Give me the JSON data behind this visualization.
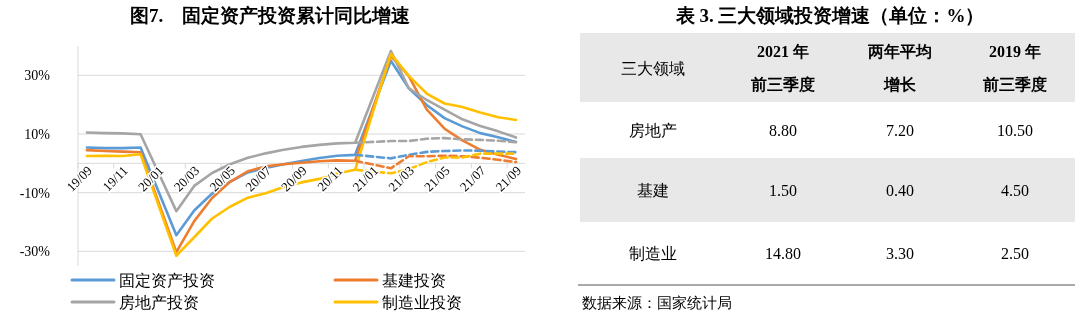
{
  "chart_data": [
    {
      "type": "line",
      "title": "图7.　固定资产投资累计同比增速",
      "categories": [
        "19/09",
        null,
        "19/11",
        null,
        "20/01",
        null,
        "20/03",
        null,
        "20/05",
        null,
        "20/07",
        null,
        "20/09",
        null,
        "20/11",
        null,
        "21/01",
        null,
        "21/03",
        null,
        "21/05",
        null,
        "21/07",
        null,
        "21/09"
      ],
      "series": [
        {
          "name": "固定资产投资",
          "color": "#5b9bd5",
          "values": [
            5.4,
            5.2,
            5.2,
            5.4,
            null,
            -24.5,
            -16.1,
            -10.3,
            -6.3,
            -3.1,
            -1.6,
            -0.3,
            0.8,
            1.8,
            2.6,
            2.9,
            null,
            35.0,
            25.6,
            19.9,
            15.4,
            12.6,
            10.3,
            8.9,
            7.3
          ]
        },
        {
          "name": "基建投资",
          "color": "#ed7d31",
          "values": [
            4.5,
            4.2,
            4.0,
            3.8,
            null,
            -30.3,
            -19.7,
            -11.8,
            -6.3,
            -2.7,
            -1.0,
            -0.3,
            0.2,
            0.7,
            1.0,
            0.9,
            null,
            36.6,
            29.7,
            18.4,
            11.8,
            7.8,
            4.6,
            2.9,
            1.5
          ]
        },
        {
          "name": "房地产投资",
          "color": "#a5a5a5",
          "values": [
            10.5,
            10.3,
            10.2,
            9.9,
            null,
            -16.3,
            -7.7,
            -3.3,
            -0.3,
            1.9,
            3.4,
            4.6,
            5.6,
            6.3,
            6.8,
            7.0,
            null,
            38.3,
            25.6,
            21.6,
            18.3,
            15.0,
            12.7,
            10.9,
            8.8
          ]
        },
        {
          "name": "制造业投资",
          "color": "#ffc000",
          "values": [
            2.5,
            2.6,
            2.5,
            3.1,
            null,
            -31.5,
            -25.2,
            -18.8,
            -14.8,
            -11.7,
            -10.2,
            -8.1,
            -6.5,
            -5.3,
            -3.5,
            -2.2,
            null,
            37.3,
            29.8,
            23.8,
            20.4,
            19.2,
            17.3,
            15.7,
            14.8
          ]
        },
        {
          "color": "#5b9bd5",
          "line_style": "dashed",
          "values": [
            null,
            null,
            null,
            null,
            null,
            null,
            null,
            null,
            null,
            null,
            null,
            null,
            null,
            null,
            null,
            2.9,
            null,
            1.7,
            2.9,
            3.9,
            4.2,
            4.4,
            4.3,
            4.0,
            3.8
          ]
        },
        {
          "color": "#ed7d31",
          "line_style": "dashed",
          "values": [
            null,
            null,
            null,
            null,
            null,
            null,
            null,
            null,
            null,
            null,
            null,
            null,
            null,
            null,
            null,
            0.9,
            null,
            -1.7,
            2.4,
            2.4,
            2.6,
            2.4,
            1.9,
            1.2,
            0.4
          ]
        },
        {
          "color": "#a5a5a5",
          "line_style": "dashed",
          "values": [
            null,
            null,
            null,
            null,
            null,
            null,
            null,
            null,
            null,
            null,
            null,
            null,
            null,
            null,
            null,
            7.0,
            null,
            7.6,
            7.6,
            8.4,
            8.6,
            8.2,
            8.0,
            7.7,
            7.2
          ]
        },
        {
          "color": "#ffc000",
          "line_style": "dashed",
          "values": [
            null,
            null,
            null,
            null,
            null,
            null,
            null,
            null,
            null,
            null,
            null,
            null,
            null,
            null,
            null,
            -2.2,
            null,
            -3.4,
            -2.0,
            0.4,
            2.0,
            2.0,
            3.3,
            3.3,
            3.3
          ]
        }
      ],
      "ylim": [
        -35,
        40
      ],
      "yticks": [
        {
          "value": -30,
          "label": "-30%"
        },
        {
          "value": -10,
          "label": "-10%"
        },
        {
          "value": 10,
          "label": "10%"
        },
        {
          "value": 30,
          "label": "30%"
        }
      ],
      "grid": "y",
      "legend": "bottom"
    },
    {
      "type": "other",
      "title": "表 3. 三大领域投资增速（单位：%）",
      "ylabel": "三大领域",
      "categories": [
        "2021 年前三季度",
        "两年平均增长",
        "2019 年前三季度"
      ],
      "y_categories": [
        "房地产",
        "基建",
        "制造业"
      ],
      "cell_labels": [
        [
          "8.80",
          "7.20",
          "10.50"
        ],
        [
          "1.50",
          "0.40",
          "4.50"
        ],
        [
          "14.80",
          "3.30",
          "2.50"
        ]
      ],
      "annotations": [
        "数据来源：国家统计局"
      ]
    }
  ]
}
